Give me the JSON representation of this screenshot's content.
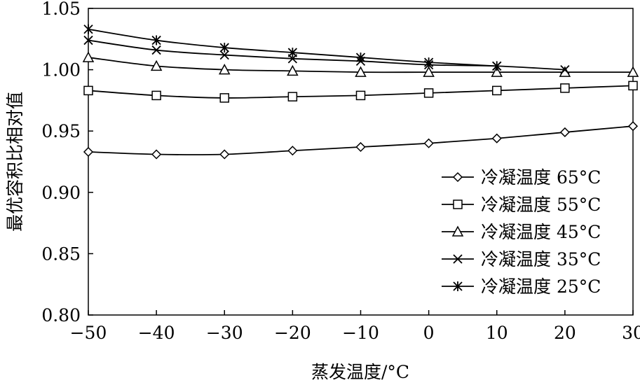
{
  "chart_data": {
    "type": "line",
    "title": "",
    "xlabel": "蒸发温度/°C",
    "ylabel": "最优容积比相对值",
    "xlim": [
      -50,
      30
    ],
    "ylim": [
      0.8,
      1.05
    ],
    "x_ticks": [
      -50,
      -40,
      -30,
      -20,
      -10,
      0,
      10,
      20,
      30
    ],
    "x_tick_labels": [
      "−50",
      "−40",
      "−30",
      "−20",
      "−10",
      "0",
      "10",
      "20",
      "30"
    ],
    "y_ticks": [
      0.8,
      0.85,
      0.9,
      0.95,
      1.0,
      1.05
    ],
    "y_tick_labels": [
      "0.80",
      "0.85",
      "0.90",
      "0.95",
      "1.00",
      "1.05"
    ],
    "grid": false,
    "legend_position": "bottom-right",
    "series": [
      {
        "name": "冷凝温度 65°C",
        "marker": "diamond",
        "x": [
          -50,
          -40,
          -30,
          -20,
          -10,
          0,
          10,
          20,
          30
        ],
        "y": [
          0.933,
          0.931,
          0.931,
          0.934,
          0.937,
          0.94,
          0.944,
          0.949,
          0.954
        ]
      },
      {
        "name": "冷凝温度 55°C",
        "marker": "square",
        "x": [
          -50,
          -40,
          -30,
          -20,
          -10,
          0,
          10,
          20,
          30
        ],
        "y": [
          0.983,
          0.979,
          0.977,
          0.978,
          0.979,
          0.981,
          0.983,
          0.985,
          0.987
        ]
      },
      {
        "name": "冷凝温度 45°C",
        "marker": "triangle",
        "x": [
          -50,
          -40,
          -30,
          -20,
          -10,
          0,
          10,
          20,
          30
        ],
        "y": [
          1.01,
          1.003,
          1.0,
          0.999,
          0.998,
          0.998,
          0.998,
          0.998,
          0.998
        ]
      },
      {
        "name": "冷凝温度 35°C",
        "marker": "x",
        "x": [
          -50,
          -40,
          -30,
          -20,
          -10,
          0,
          10,
          20
        ],
        "y": [
          1.024,
          1.016,
          1.012,
          1.009,
          1.007,
          1.004,
          1.003,
          1.0
        ]
      },
      {
        "name": "冷凝温度 25°C",
        "marker": "asterisk",
        "x": [
          -50,
          -40,
          -30,
          -20,
          -10,
          0,
          10
        ],
        "y": [
          1.033,
          1.024,
          1.018,
          1.014,
          1.01,
          1.006,
          1.003
        ]
      }
    ]
  }
}
